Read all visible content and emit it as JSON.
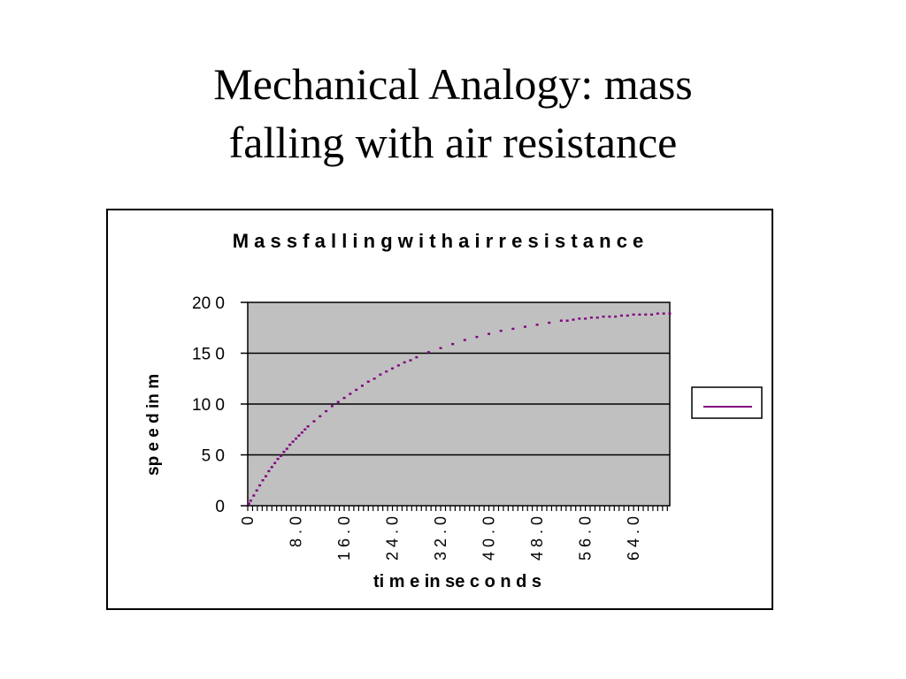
{
  "slide": {
    "title_line1": "Mechanical Analogy:  mass",
    "title_line2": "falling with air resistance"
  },
  "chart_data": {
    "type": "scatter",
    "title": "M a s s  f a l l i n g  w i t h  a i r  r e s i s t a n c e",
    "xlabel": "ti m e  in  se c o n d s",
    "ylabel": "sp e e d  in  m",
    "ylim": [
      0,
      200
    ],
    "yticks": [
      {
        "value": 0,
        "label": "0"
      },
      {
        "value": 50,
        "label": "5 0"
      },
      {
        "value": 100,
        "label": "10 0"
      },
      {
        "value": 150,
        "label": "15 0"
      },
      {
        "value": 200,
        "label": "20 0"
      }
    ],
    "xlim": [
      0,
      70
    ],
    "xticks": [
      {
        "value": 0,
        "label": "0"
      },
      {
        "value": 8,
        "label": "8 . 0"
      },
      {
        "value": 16,
        "label": "1 6 . 0"
      },
      {
        "value": 24,
        "label": "2 4 . 0"
      },
      {
        "value": 32,
        "label": "3 2 . 0"
      },
      {
        "value": 40,
        "label": "4 0 . 0"
      },
      {
        "value": 48,
        "label": "4 8 . 0"
      },
      {
        "value": 56,
        "label": "5 6 . 0"
      },
      {
        "value": 64,
        "label": "6 4 . 0"
      }
    ],
    "grid": true,
    "legend": "right",
    "colors": {
      "series": "#800080",
      "plot_bg": "#c0c0c0"
    },
    "series": [
      {
        "name": "",
        "x": [
          0.2,
          0.5,
          1,
          1.5,
          2,
          2.5,
          3,
          3.5,
          4,
          4.5,
          5,
          5.5,
          6,
          6.5,
          7,
          7.5,
          8,
          8.5,
          9,
          9.5,
          10,
          11,
          12,
          13,
          14,
          15,
          16,
          17,
          18,
          19,
          20,
          21,
          22,
          23,
          24,
          25,
          26,
          27,
          28,
          30,
          32,
          34,
          36,
          38,
          40,
          42,
          44,
          46,
          48,
          50,
          52,
          53,
          54,
          55,
          56,
          57,
          58,
          59,
          60,
          61,
          62,
          63,
          64,
          65,
          66,
          67,
          68,
          69,
          70
        ],
        "y": [
          2,
          5,
          10,
          15,
          20,
          25,
          29,
          34,
          38,
          42,
          46,
          49,
          53,
          56,
          60,
          63,
          66,
          69,
          72,
          75,
          78,
          83,
          88,
          93,
          98,
          102,
          106,
          110,
          114,
          118,
          122,
          125,
          129,
          132,
          135,
          138,
          141,
          143,
          146,
          151,
          155,
          159,
          163,
          166,
          169,
          172,
          174,
          176,
          178,
          180,
          182,
          182,
          183,
          184,
          184,
          185,
          185,
          186,
          186,
          186,
          187,
          187,
          188,
          188,
          188,
          188,
          189,
          189,
          189
        ]
      }
    ]
  }
}
